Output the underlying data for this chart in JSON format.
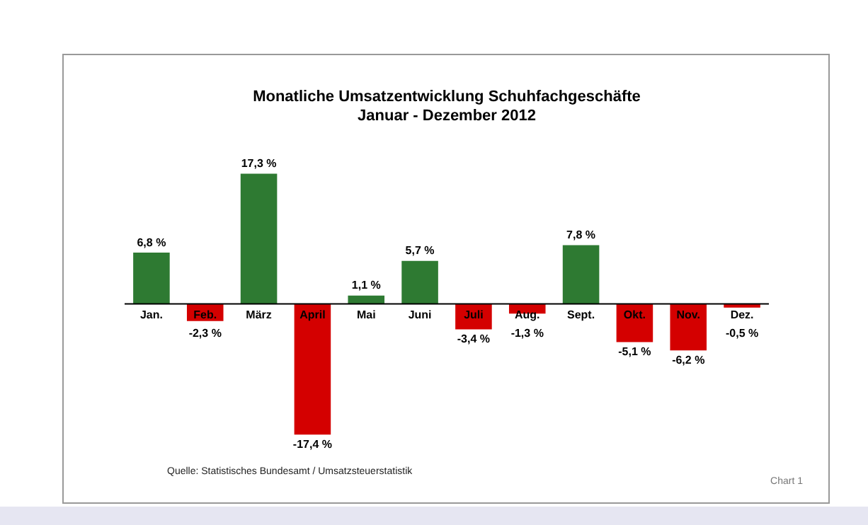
{
  "chart_data": {
    "type": "bar",
    "title": "Monatliche Umsatzentwicklung Schuhfachgeschäfte",
    "subtitle": "Januar - Dezember 2012",
    "categories": [
      "Jan.",
      "Feb.",
      "März",
      "April",
      "Mai",
      "Juni",
      "Juli",
      "Aug.",
      "Sept.",
      "Okt.",
      "Nov.",
      "Dez."
    ],
    "values": [
      6.8,
      -2.3,
      17.3,
      -17.4,
      1.1,
      5.7,
      -3.4,
      -1.3,
      7.8,
      -5.1,
      -6.2,
      -0.5
    ],
    "colors": [
      "#2e7a32",
      "#d40000",
      "#2e7a32",
      "#d40000",
      "#2e7a32",
      "#2e7a32",
      "#d40000",
      "#d40000",
      "#2e7a32",
      "#d40000",
      "#d40000",
      "#d40000"
    ],
    "value_labels": [
      "6,8 %",
      "-2,3 %",
      "17,3 %",
      "-17,4 %",
      "1,1 %",
      "5,7 %",
      "-3,4 %",
      "-1,3 %",
      "7,8 %",
      "-5,1 %",
      "-6,2 %",
      "-0,5 %"
    ],
    "annotations": [
      "Quelle: Statistisches Bundesamt / Umsatzsteuerstatistik",
      "Chart 1"
    ],
    "legend": false
  }
}
